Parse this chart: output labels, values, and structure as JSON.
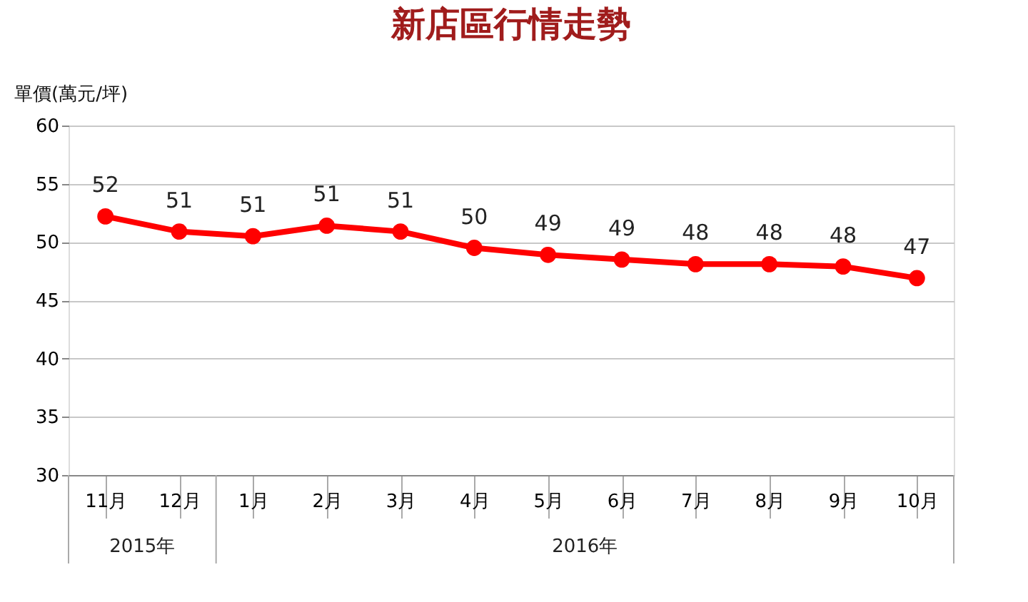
{
  "chart_data": {
    "type": "line",
    "title": "新店區行情走勢",
    "ylabel": "單價(萬元/坪)",
    "categories": [
      "11月",
      "12月",
      "1月",
      "2月",
      "3月",
      "4月",
      "5月",
      "6月",
      "7月",
      "8月",
      "9月",
      "10月"
    ],
    "series": [
      {
        "color": "#ff0000",
        "values": [
          52.2,
          50.9,
          50.5,
          51.4,
          50.9,
          49.5,
          48.9,
          48.5,
          48.1,
          48.1,
          47.9,
          46.9
        ],
        "value_labels": [
          "52",
          "51",
          "51",
          "51",
          "51",
          "50",
          "49",
          "49",
          "48",
          "48",
          "48",
          "47"
        ]
      }
    ],
    "ylim": [
      30,
      60
    ],
    "yticks": [
      30,
      35,
      40,
      45,
      50,
      55,
      60
    ],
    "grid": "y",
    "marker": "circle",
    "line_style": "solid",
    "annotations": [
      "2015年",
      "2016年"
    ]
  }
}
